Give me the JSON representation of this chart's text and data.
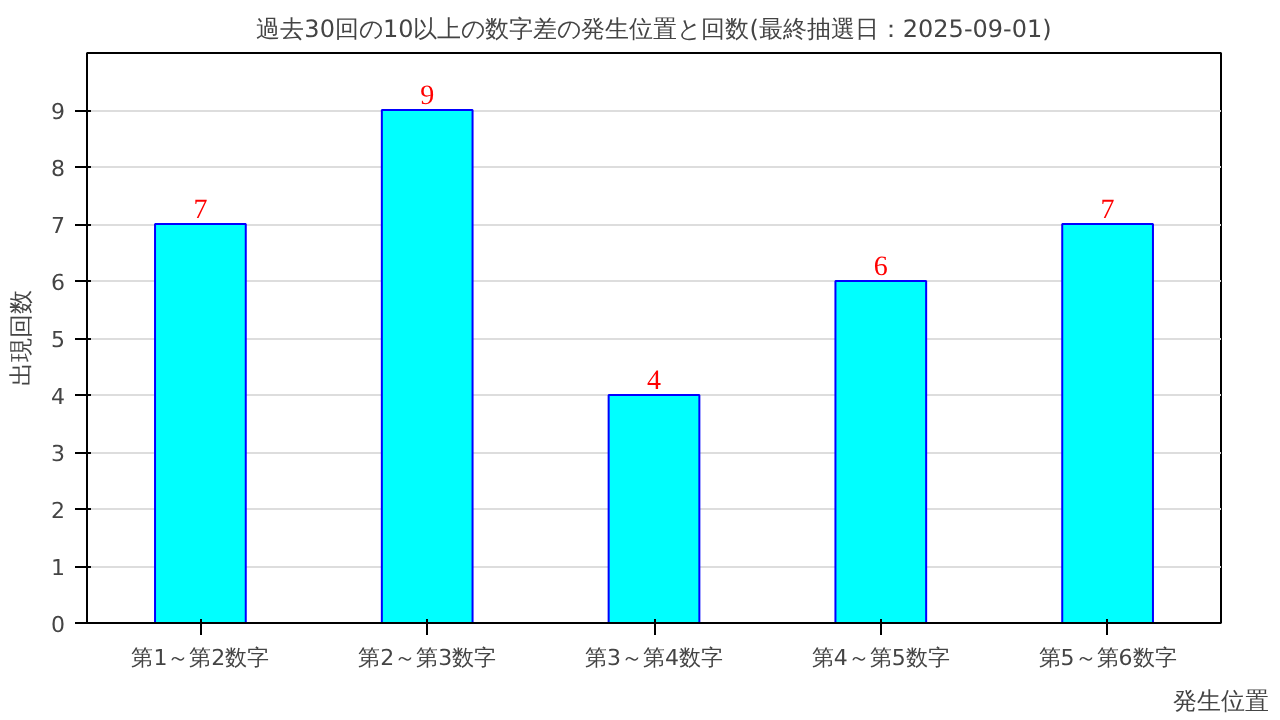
{
  "chart_data": {
    "type": "bar",
    "title": "過去30回の10以上の数字差の発生位置と回数(最終抽選日：2025-09-01)",
    "xlabel": "発生位置",
    "ylabel": "出現回数",
    "categories": [
      "第1～第2数字",
      "第2～第3数字",
      "第3～第4数字",
      "第4～第5数字",
      "第5～第6数字"
    ],
    "values": [
      7,
      9,
      4,
      6,
      7
    ],
    "color": "#00ffff",
    "ylim": [
      0,
      10
    ],
    "yticks": [
      0,
      1,
      2,
      3,
      4,
      5,
      6,
      7,
      8,
      9
    ],
    "grid": "y",
    "data_labels": true
  }
}
